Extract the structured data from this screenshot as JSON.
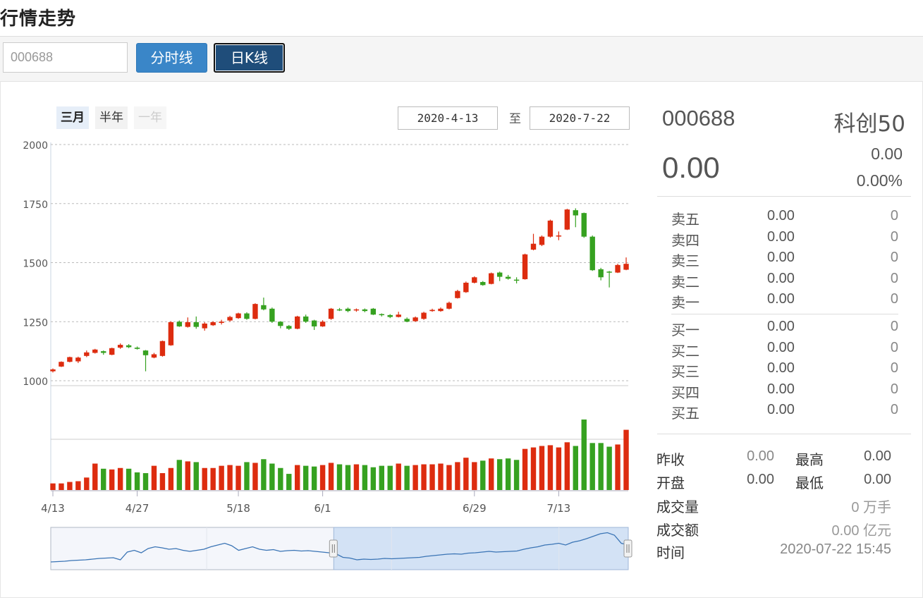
{
  "page": {
    "title": "行情走势"
  },
  "toolbar": {
    "code_value": "000688",
    "btn_fenshi": "分时线",
    "btn_rik": "日K线"
  },
  "range": {
    "tabs": [
      "三月",
      "半年",
      "一年"
    ],
    "from": "2020-4-13",
    "sep": "至",
    "to": "2020-7-22"
  },
  "chart_data": {
    "type": "candlestick",
    "y_ticks": [
      "2000",
      "1750",
      "1500",
      "1250",
      "1000"
    ],
    "ylim": [
      1000,
      2000
    ],
    "x_ticks": [
      "4/13",
      "4/27",
      "5/18",
      "6/1",
      "6/29",
      "7/13"
    ],
    "x_tick_index": [
      0,
      10,
      22,
      32,
      50,
      60
    ],
    "colors": {
      "up": "#dd2c0f",
      "down": "#36a120",
      "line": "#3a74b5"
    },
    "candles": [
      [
        1040,
        1048,
        1035,
        1052
      ],
      [
        1060,
        1080,
        1058,
        1082
      ],
      [
        1080,
        1100,
        1078,
        1102
      ],
      [
        1082,
        1098,
        1075,
        1102
      ],
      [
        1105,
        1120,
        1100,
        1128
      ],
      [
        1118,
        1132,
        1115,
        1135
      ],
      [
        1125,
        1118,
        1110,
        1128
      ],
      [
        1110,
        1138,
        1108,
        1140
      ],
      [
        1140,
        1152,
        1135,
        1158
      ],
      [
        1150,
        1142,
        1138,
        1155
      ],
      [
        1140,
        1135,
        1132,
        1145
      ],
      [
        1128,
        1108,
        1040,
        1130
      ],
      [
        1098,
        1112,
        1095,
        1118
      ],
      [
        1105,
        1168,
        1102,
        1170
      ],
      [
        1150,
        1248,
        1148,
        1252
      ],
      [
        1250,
        1230,
        1228,
        1255
      ],
      [
        1228,
        1248,
        1225,
        1268
      ],
      [
        1248,
        1228,
        1220,
        1272
      ],
      [
        1222,
        1242,
        1212,
        1248
      ],
      [
        1235,
        1248,
        1232,
        1252
      ],
      [
        1245,
        1250,
        1238,
        1258
      ],
      [
        1255,
        1270,
        1250,
        1275
      ],
      [
        1265,
        1285,
        1262,
        1288
      ],
      [
        1285,
        1262,
        1258,
        1290
      ],
      [
        1262,
        1325,
        1260,
        1328
      ],
      [
        1320,
        1302,
        1298,
        1352
      ],
      [
        1305,
        1250,
        1245,
        1310
      ],
      [
        1250,
        1232,
        1222,
        1252
      ],
      [
        1232,
        1220,
        1215,
        1236
      ],
      [
        1220,
        1272,
        1218,
        1275
      ],
      [
        1272,
        1250,
        1245,
        1280
      ],
      [
        1255,
        1230,
        1215,
        1258
      ],
      [
        1230,
        1250,
        1228,
        1256
      ],
      [
        1262,
        1305,
        1258,
        1308
      ],
      [
        1302,
        1300,
        1295,
        1308
      ],
      [
        1305,
        1295,
        1290,
        1310
      ],
      [
        1298,
        1302,
        1292,
        1306
      ],
      [
        1302,
        1295,
        1290,
        1306
      ],
      [
        1305,
        1280,
        1278,
        1308
      ],
      [
        1282,
        1278,
        1272,
        1285
      ],
      [
        1278,
        1270,
        1265,
        1282
      ],
      [
        1270,
        1280,
        1268,
        1292
      ],
      [
        1262,
        1250,
        1248,
        1268
      ],
      [
        1252,
        1268,
        1250,
        1272
      ],
      [
        1262,
        1288,
        1258,
        1292
      ],
      [
        1295,
        1300,
        1292,
        1305
      ],
      [
        1295,
        1305,
        1292,
        1310
      ],
      [
        1305,
        1330,
        1302,
        1335
      ],
      [
        1350,
        1380,
        1348,
        1385
      ],
      [
        1375,
        1415,
        1372,
        1420
      ],
      [
        1415,
        1438,
        1412,
        1442
      ],
      [
        1418,
        1405,
        1402,
        1422
      ],
      [
        1410,
        1455,
        1408,
        1458
      ],
      [
        1458,
        1440,
        1422,
        1462
      ],
      [
        1440,
        1432,
        1428,
        1448
      ],
      [
        1428,
        1425,
        1412,
        1438
      ],
      [
        1430,
        1535,
        1428,
        1538
      ],
      [
        1555,
        1580,
        1552,
        1622
      ],
      [
        1575,
        1610,
        1570,
        1615
      ],
      [
        1610,
        1678,
        1606,
        1682
      ],
      [
        1612,
        1615,
        1595,
        1632
      ],
      [
        1640,
        1725,
        1638,
        1728
      ],
      [
        1722,
        1700,
        1650,
        1730
      ],
      [
        1710,
        1610,
        1605,
        1712
      ],
      [
        1610,
        1468,
        1465,
        1615
      ],
      [
        1472,
        1438,
        1425,
        1478
      ],
      [
        1462,
        1460,
        1395,
        1465
      ],
      [
        1458,
        1490,
        1456,
        1495
      ],
      [
        1470,
        1495,
        1468,
        1522
      ]
    ],
    "volumes": [
      9,
      9,
      11,
      12,
      17,
      36,
      29,
      28,
      30,
      29,
      24,
      23,
      33,
      23,
      30,
      41,
      39,
      38,
      30,
      30,
      33,
      34,
      33,
      38,
      37,
      42,
      36,
      30,
      22,
      34,
      33,
      32,
      34,
      37,
      35,
      34,
      35,
      34,
      31,
      33,
      33,
      36,
      33,
      34,
      35,
      35,
      36,
      34,
      38,
      44,
      38,
      40,
      43,
      42,
      43,
      41,
      56,
      58,
      60,
      61,
      58,
      65,
      60,
      96,
      64,
      64,
      59,
      62,
      82
    ],
    "overview": [
      0.88,
      0.87,
      0.86,
      0.84,
      0.83,
      0.82,
      0.8,
      0.78,
      0.77,
      0.76,
      0.82,
      0.6,
      0.55,
      0.62,
      0.5,
      0.45,
      0.48,
      0.52,
      0.5,
      0.55,
      0.58,
      0.55,
      0.52,
      0.45,
      0.4,
      0.35,
      0.42,
      0.55,
      0.5,
      0.45,
      0.52,
      0.55,
      0.53,
      0.58,
      0.56,
      0.55,
      0.57,
      0.56,
      0.58,
      0.6,
      0.62,
      0.65,
      0.75,
      0.77,
      0.82,
      0.8,
      0.81,
      0.8,
      0.78,
      0.79,
      0.78,
      0.77,
      0.76,
      0.75,
      0.72,
      0.7,
      0.68,
      0.66,
      0.65,
      0.66,
      0.63,
      0.62,
      0.6,
      0.58,
      0.6,
      0.59,
      0.58,
      0.57,
      0.52,
      0.48,
      0.45,
      0.4,
      0.38,
      0.35,
      0.4,
      0.32,
      0.28,
      0.22,
      0.15,
      0.08,
      0.05,
      0.12,
      0.35,
      0.4
    ],
    "overview_sel": [
      0.49,
      1.0
    ]
  },
  "quote": {
    "code": "000688",
    "name": "科创50",
    "price": "0.00",
    "change": "0.00",
    "change_pct": "0.00%"
  },
  "orderbook": {
    "asks": [
      {
        "label": "卖五",
        "price": "0.00",
        "vol": "0"
      },
      {
        "label": "卖四",
        "price": "0.00",
        "vol": "0"
      },
      {
        "label": "卖三",
        "price": "0.00",
        "vol": "0"
      },
      {
        "label": "卖二",
        "price": "0.00",
        "vol": "0"
      },
      {
        "label": "卖一",
        "price": "0.00",
        "vol": "0"
      }
    ],
    "bids": [
      {
        "label": "买一",
        "price": "0.00",
        "vol": "0"
      },
      {
        "label": "买二",
        "price": "0.00",
        "vol": "0"
      },
      {
        "label": "买三",
        "price": "0.00",
        "vol": "0"
      },
      {
        "label": "买四",
        "price": "0.00",
        "vol": "0"
      },
      {
        "label": "买五",
        "price": "0.00",
        "vol": "0"
      }
    ]
  },
  "stats": {
    "prev_close_label": "昨收",
    "prev_close": "0.00",
    "high_label": "最高",
    "high": "0.00",
    "open_label": "开盘",
    "open": "0.00",
    "low_label": "最低",
    "low": "0.00",
    "volume_label": "成交量",
    "volume": "0 万手",
    "amount_label": "成交额",
    "amount": "0.00 亿元",
    "time_label": "时间",
    "time": "2020-07-22 15:45"
  }
}
